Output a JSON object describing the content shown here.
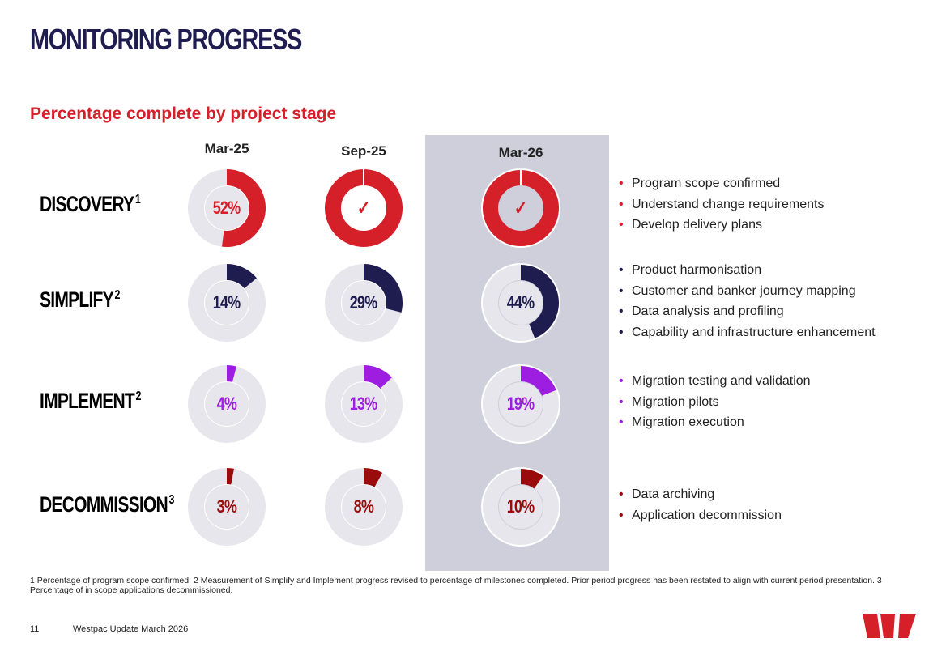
{
  "title": "MONITORING PROGRESS",
  "chart_data": {
    "type": "donut-grid",
    "title": "Percentage complete by project stage",
    "periods": [
      "Mar-25",
      "Sep-25",
      "Mar-26"
    ],
    "highlighted_period": "Mar-26",
    "stages": [
      {
        "name": "DISCOVERY",
        "footnote_ref": "1",
        "color": "#d5202a",
        "values": [
          52,
          100,
          100
        ],
        "labels": [
          "52%",
          "✓",
          "✓"
        ],
        "bullets": [
          "Program scope confirmed",
          "Understand change requirements",
          "Develop delivery plans"
        ]
      },
      {
        "name": "SIMPLIFY",
        "footnote_ref": "2",
        "color": "#1f1c4f",
        "values": [
          14,
          29,
          44
        ],
        "labels": [
          "14%",
          "29%",
          "44%"
        ],
        "bullets": [
          "Product harmonisation",
          "Customer and banker journey mapping",
          "Data analysis and profiling",
          "Capability and infrastructure enhancement"
        ]
      },
      {
        "name": "IMPLEMENT",
        "footnote_ref": "2",
        "color": "#9d1ee0",
        "values": [
          4,
          13,
          19
        ],
        "labels": [
          "4%",
          "13%",
          "19%"
        ],
        "bullets": [
          "Migration testing and validation",
          "Migration pilots",
          "Migration execution"
        ]
      },
      {
        "name": "DECOMMISSION",
        "footnote_ref": "3",
        "color": "#9a0c0c",
        "values": [
          3,
          8,
          10
        ],
        "labels": [
          "3%",
          "8%",
          "10%"
        ],
        "bullets": [
          "Data archiving",
          "Application decommission"
        ]
      }
    ]
  },
  "colors": {
    "track": "#e6e6ec",
    "highlight_bg": "#cfcfdb",
    "title": "#1f1c4f",
    "accent": "#d5202a"
  },
  "footnote": "1 Percentage of program scope confirmed. 2 Measurement of Simplify and Implement progress revised to percentage of milestones completed. Prior period progress has been restated to align with current period presentation. 3 Percentage of in scope applications decommissioned.",
  "footer": {
    "page_number": "11",
    "document_name": "Westpac Update March 2026"
  },
  "logo": {
    "icon": "westpac-w-logo"
  }
}
